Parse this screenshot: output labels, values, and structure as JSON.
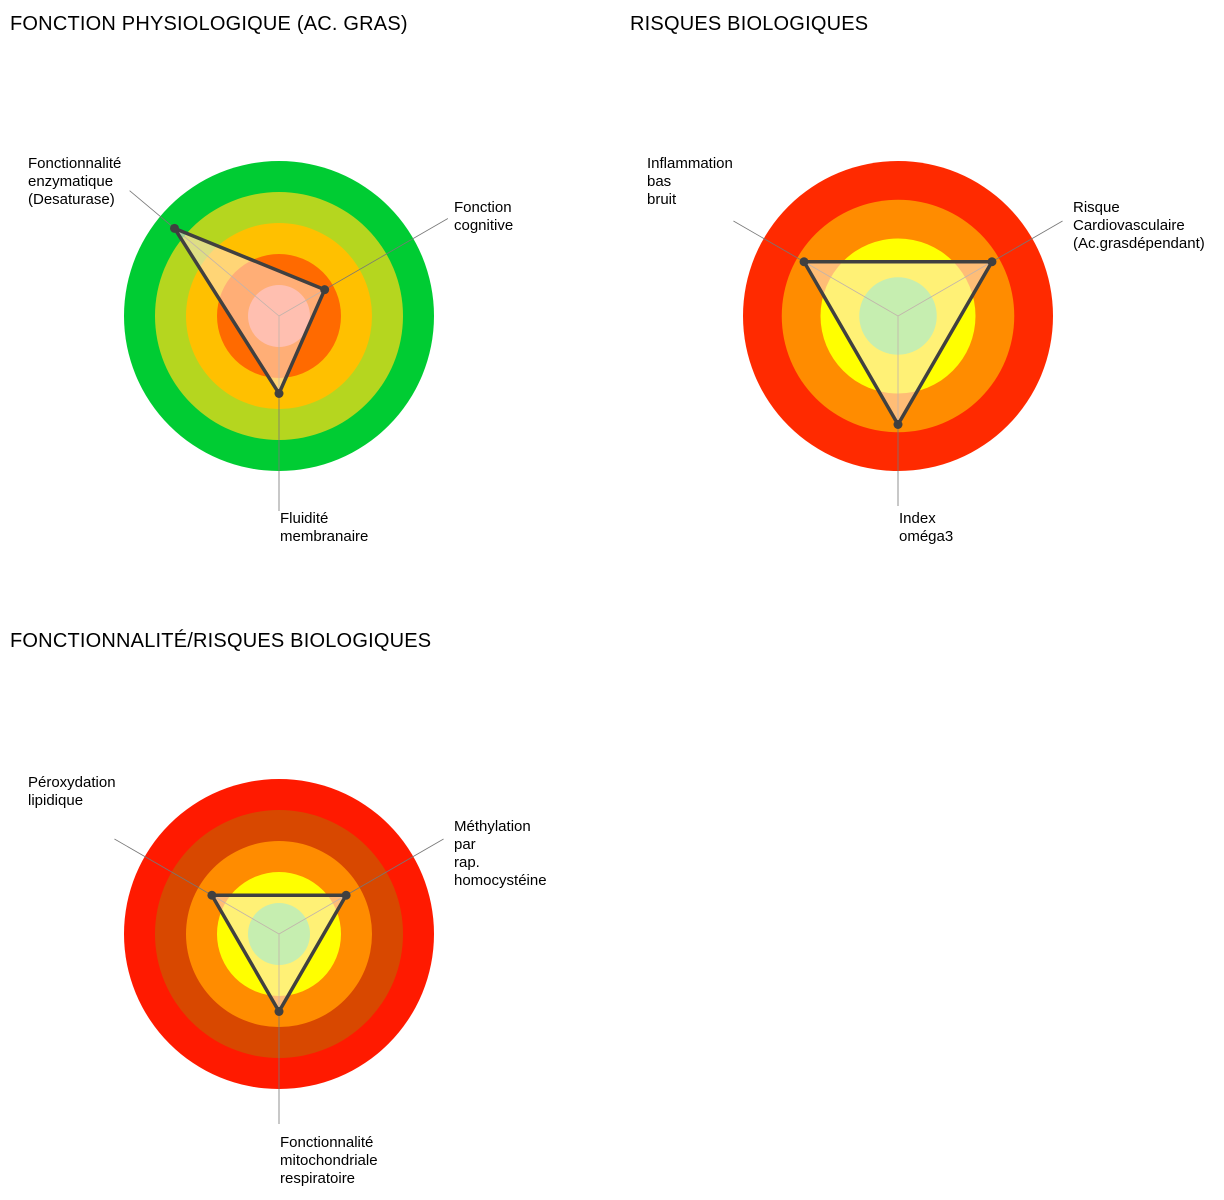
{
  "chart_data": [
    {
      "type": "radar",
      "title": "FONCTION PHYSIOLOGIQUE (AC. GRAS)",
      "rings": 5,
      "zone_colors": [
        "#ff9080",
        "#ff6a00",
        "#ffc000",
        "#b5d61f",
        "#00cc33"
      ],
      "axes": [
        {
          "label": [
            "Fonctionnalité",
            "enzymatique",
            "(Desaturase)"
          ],
          "value": 4.4
        },
        {
          "label": [
            "Fonction",
            "cognitive"
          ],
          "value": 1.7
        },
        {
          "label": [
            "Fluidité",
            "membranaire"
          ],
          "value": 2.5
        }
      ]
    },
    {
      "type": "radar",
      "title": "RISQUES BIOLOGIQUES",
      "rings": 4,
      "zone_colors": [
        "#80f880",
        "#ffff00",
        "#ff8c00",
        "#ff2a00"
      ],
      "axes": [
        {
          "label": [
            "Inflammation",
            "bas",
            "bruit"
          ],
          "value": 2.8
        },
        {
          "label": [
            "Risque",
            "Cardiovasculaire",
            "(Ac.grasdépendant)"
          ],
          "value": 2.8
        },
        {
          "label": [
            "Index",
            "oméga3"
          ],
          "value": 2.8
        }
      ]
    },
    {
      "type": "radar",
      "title": "FONCTIONNALITÉ/RISQUES BIOLOGIQUES",
      "rings": 5,
      "zone_colors": [
        "#80f880",
        "#ffff00",
        "#ff8c00",
        "#d84800",
        "#ff1a00"
      ],
      "axes": [
        {
          "label": [
            "Péroxydation",
            "lipidique"
          ],
          "value": 2.5
        },
        {
          "label": [
            "Méthylation",
            "par",
            "rap.",
            "homocystéine"
          ],
          "value": 2.5
        },
        {
          "label": [
            "Fonctionnalité",
            "mitochondriale",
            "respiratoire"
          ],
          "value": 2.5
        }
      ]
    }
  ]
}
